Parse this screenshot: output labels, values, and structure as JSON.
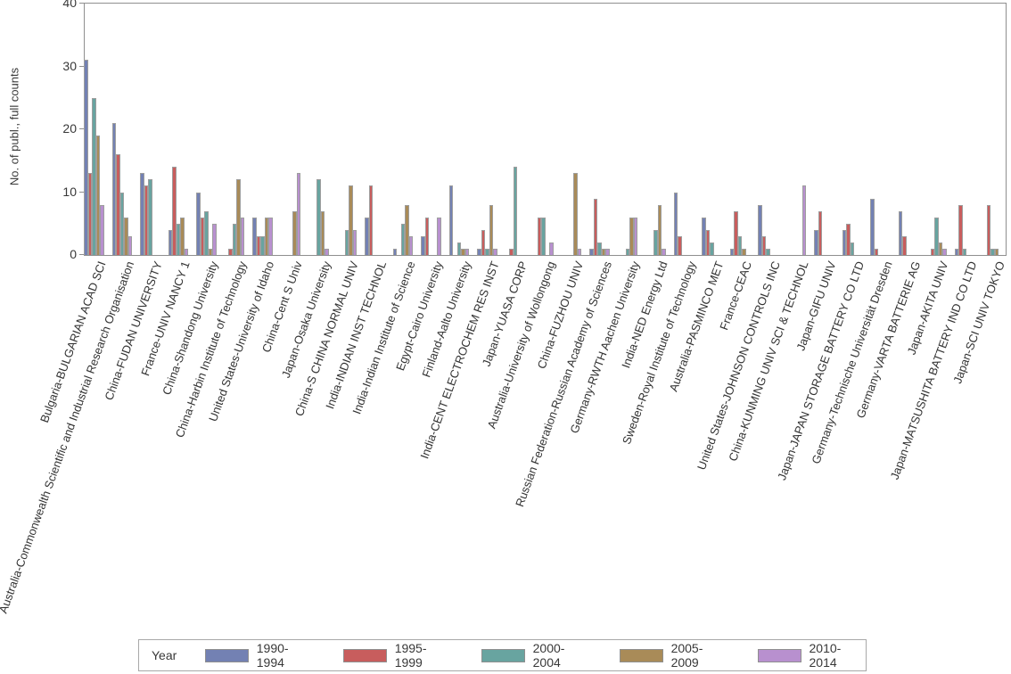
{
  "chart_data": {
    "type": "bar",
    "title": "",
    "xlabel": "",
    "ylabel": "No. of publ., full counts",
    "ylim": [
      0,
      40
    ],
    "yticks": [
      0,
      10,
      20,
      30,
      40
    ],
    "grid": false,
    "legend_title": "Year",
    "legend_position": "bottom",
    "bar_border_color": "#9e9e9e",
    "axis_color": "#8f8f8f",
    "categories": [
      "Bulgaria-BULGARIAN ACAD SCI",
      "Australia-Commonwealth Scientific and Industrial Research Organisation",
      "China-FUDAN UNIVERSITY",
      "France-UNIV NANCY 1",
      "China-Shandong University",
      "China-Harbin Institute of Technology",
      "United States-University of Idaho",
      "China-Cent S Univ",
      "Japan-Osaka University",
      "China-S CHINA NORMAL UNIV",
      "India-INDIAN INST TECHNOL",
      "India-Indian Institute of Science",
      "Egypt-Cairo University",
      "Finland-Aalto University",
      "India-CENT ELECTROCHEM RES INST",
      "Japan-YUASA CORP",
      "Australia-University of Wollongong",
      "China-FUZHOU UNIV",
      "Russian Federation-Russian Academy of Sciences",
      "Germany-RWTH Aachen University",
      "India-NED Energy Ltd",
      "Sweden-Royal Institute of Technology",
      "Australia-PASMINCO MET",
      "France-CEAC",
      "United States-JOHNSON CONTROLS INC",
      "China-KUNMING UNIV SCI & TECHNOL",
      "Japan-GIFU UNIV",
      "Japan-JAPAN STORAGE BATTERY CO LTD",
      "Germany-Technische Universität Dresden",
      "Germany-VARTA BATTERIE AG",
      "Japan-AKITA UNIV",
      "Japan-MATSUSHITA BATTERY IND CO LTD",
      "Japan-SCI UNIV TOKYO"
    ],
    "series": [
      {
        "name": "1990-1994",
        "color": "#7381B3",
        "values": [
          31,
          21,
          13,
          4,
          10,
          0,
          6,
          0,
          0,
          0,
          6,
          1,
          3,
          11,
          1,
          0,
          0,
          0,
          1,
          0,
          0,
          10,
          6,
          1,
          8,
          0,
          4,
          4,
          9,
          7,
          0,
          1,
          0
        ]
      },
      {
        "name": "1995-1999",
        "color": "#C85D5D",
        "values": [
          13,
          16,
          11,
          14,
          6,
          1,
          3,
          0,
          0,
          0,
          11,
          0,
          6,
          0,
          4,
          1,
          6,
          0,
          9,
          0,
          0,
          3,
          4,
          7,
          3,
          0,
          7,
          5,
          1,
          3,
          1,
          8,
          8
        ]
      },
      {
        "name": "2000-2004",
        "color": "#68A4A0",
        "values": [
          25,
          10,
          12,
          5,
          7,
          5,
          3,
          0,
          12,
          4,
          0,
          5,
          0,
          2,
          1,
          14,
          6,
          0,
          2,
          1,
          4,
          0,
          2,
          3,
          1,
          0,
          0,
          2,
          0,
          0,
          6,
          1,
          1
        ]
      },
      {
        "name": "2005-2009",
        "color": "#A98B58",
        "values": [
          19,
          6,
          0,
          6,
          1,
          12,
          6,
          7,
          7,
          11,
          0,
          8,
          0,
          1,
          8,
          0,
          0,
          13,
          1,
          6,
          8,
          0,
          0,
          1,
          0,
          0,
          0,
          0,
          0,
          0,
          2,
          0,
          1
        ]
      },
      {
        "name": "2010-2014",
        "color": "#B890CF",
        "values": [
          8,
          3,
          0,
          1,
          5,
          6,
          6,
          13,
          1,
          4,
          0,
          3,
          6,
          1,
          1,
          0,
          2,
          1,
          1,
          6,
          1,
          0,
          0,
          0,
          0,
          11,
          0,
          0,
          0,
          0,
          1,
          0,
          0
        ]
      }
    ]
  }
}
